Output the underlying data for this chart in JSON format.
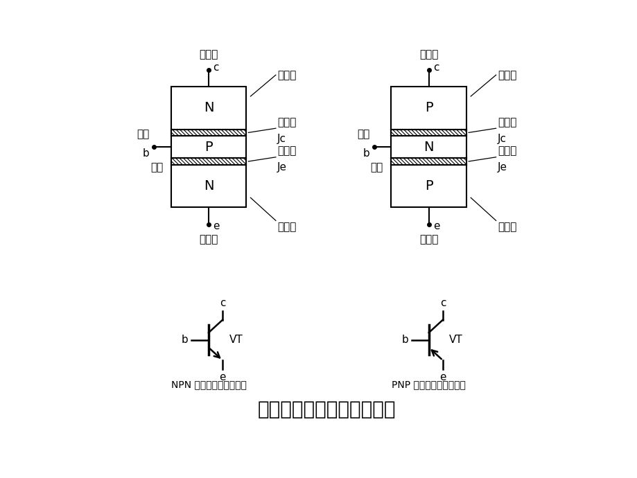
{
  "title": "三极管的结构示意图和符号",
  "background_color": "#ffffff",
  "npn_label": "NPN 型三极管结构与符号",
  "pnp_label": "PNP 型三极管结构与符号",
  "jd_collector": "集电极",
  "jd_base": "基极",
  "jd_emitter": "发射极",
  "region_collector": "集电区",
  "region_base": "基区",
  "region_emitter": "发射区",
  "junction_collector": "集电结",
  "junction_emitter": "发射结",
  "npn_regions": [
    "N",
    "P",
    "N"
  ],
  "pnp_regions": [
    "P",
    "N",
    "P"
  ],
  "title_fontsize": 20,
  "label_fontsize": 11,
  "region_fontsize": 14
}
